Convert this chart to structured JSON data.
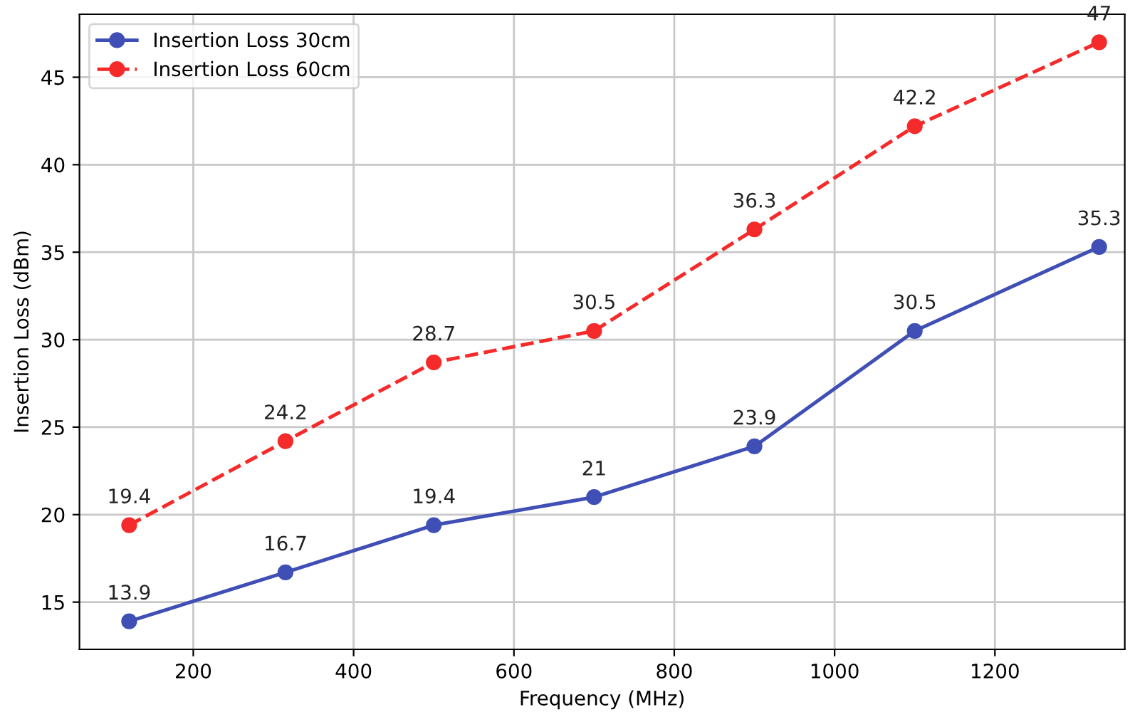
{
  "chart_data": {
    "type": "line",
    "xlabel": "Frequency (MHz)",
    "ylabel": "Insertion Loss (dBm)",
    "x": [
      120,
      315,
      500,
      700,
      900,
      1100,
      1330
    ],
    "series": [
      {
        "name": "Insertion Loss 30cm",
        "color": "#3f4fb5",
        "values": [
          13.9,
          16.7,
          19.4,
          21,
          23.9,
          30.5,
          35.3
        ],
        "line_style": "solid"
      },
      {
        "name": "Insertion Loss 60cm",
        "color": "#f52a2a",
        "values": [
          19.4,
          24.2,
          28.7,
          30.5,
          36.3,
          42.2,
          47
        ],
        "line_style": "dashed"
      }
    ],
    "xlim": [
      58,
      1362
    ],
    "ylim": [
      12.3,
      48.6
    ],
    "xticks": [
      200,
      400,
      600,
      800,
      1000,
      1200
    ],
    "yticks": [
      15,
      20,
      25,
      30,
      35,
      40,
      45
    ],
    "grid": true,
    "legend": "top left",
    "marker": "circle",
    "data_labels": true
  }
}
